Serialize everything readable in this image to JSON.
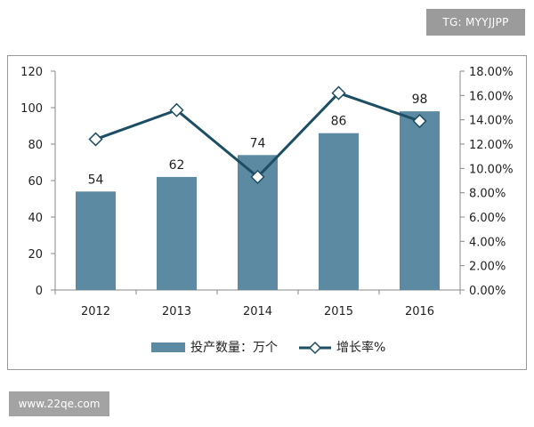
{
  "watermarks": {
    "top": "TG: MYYJJPP",
    "bottom": "www.22qe.com"
  },
  "colors": {
    "bar": "#5b8aa2",
    "line": "#1d4e63",
    "marker_fill": "#ffffff",
    "axis": "#888888"
  },
  "chart_data": {
    "type": "bar",
    "categories": [
      "2012",
      "2013",
      "2014",
      "2015",
      "2016"
    ],
    "series": [
      {
        "name": "投产数量：万个",
        "type": "bar",
        "axis": "left",
        "values": [
          54,
          62,
          74,
          86,
          98
        ],
        "data_labels": [
          "54",
          "62",
          "74",
          "86",
          "98"
        ]
      },
      {
        "name": "增长率%",
        "type": "line",
        "axis": "right",
        "marker": "diamond",
        "values": [
          12.4,
          14.8,
          9.3,
          16.2,
          13.9
        ]
      }
    ],
    "y_left": {
      "ylim": [
        0,
        120
      ],
      "ticks": [
        "0",
        "20",
        "40",
        "60",
        "80",
        "100",
        "120"
      ]
    },
    "y_right": {
      "ylim": [
        0,
        18
      ],
      "ticks": [
        "0.00%",
        "2.00%",
        "4.00%",
        "6.00%",
        "8.00%",
        "10.00%",
        "12.00%",
        "14.00%",
        "16.00%",
        "18.00%"
      ]
    },
    "grid": false,
    "legend_position": "bottom"
  }
}
